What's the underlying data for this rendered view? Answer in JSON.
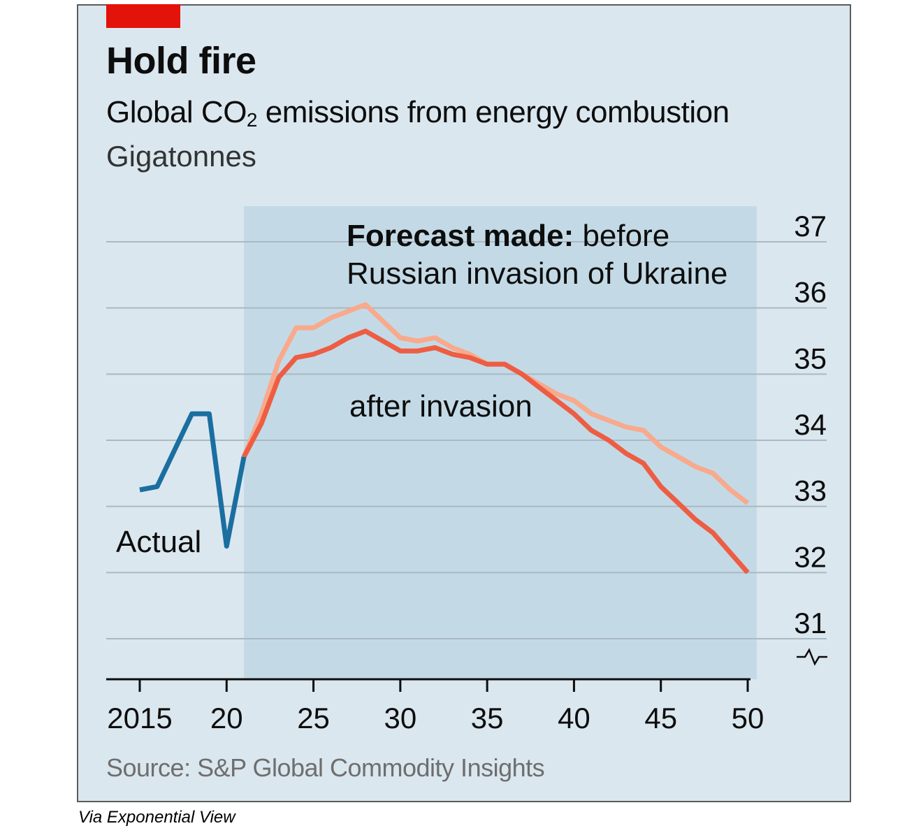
{
  "header": {
    "title": "Hold fire",
    "subtitle_main": "Global CO",
    "subtitle_sub": "2",
    "subtitle_rest": " emissions from energy combustion",
    "unit": "Gigatonnes"
  },
  "annotations": {
    "forecast_bold": "Forecast made:",
    "forecast_rest": " before",
    "forecast_line2": "Russian invasion of Ukraine",
    "after": "after invasion",
    "actual": "Actual"
  },
  "footer": {
    "source": "Source: S&P Global Commodity Insights",
    "credit": "Via Exponential View"
  },
  "colors": {
    "background": "#dbe7ef",
    "forecast_shade": "#c3dae6",
    "actual": "#1a6fa0",
    "before": "#f9a98c",
    "after": "#ee5d43",
    "accent_tab": "#e3120b"
  },
  "chart_data": {
    "type": "line",
    "title": "Hold fire",
    "subtitle": "Global CO2 emissions from energy combustion",
    "ylabel": "Gigatonnes",
    "xlim": [
      2015,
      2050
    ],
    "ylim": [
      31,
      37
    ],
    "y_axis_broken": true,
    "y_axis_side": "right",
    "grid": true,
    "forecast_region": [
      2021,
      2050
    ],
    "x_ticks": [
      2015,
      2020,
      2025,
      2030,
      2035,
      2040,
      2045,
      2050
    ],
    "x_tick_labels": [
      "2015",
      "20",
      "25",
      "30",
      "35",
      "40",
      "45",
      "50"
    ],
    "y_ticks": [
      31,
      32,
      33,
      34,
      35,
      36,
      37
    ],
    "y_tick_labels": [
      "31",
      "32",
      "33",
      "34",
      "35",
      "36",
      "37"
    ],
    "series": [
      {
        "name": "Actual",
        "x": [
          2015,
          2016,
          2017,
          2018,
          2019,
          2020,
          2021
        ],
        "y": [
          33.25,
          33.3,
          33.85,
          34.4,
          34.4,
          32.4,
          33.75
        ]
      },
      {
        "name": "Forecast made: before Russian invasion of Ukraine",
        "x": [
          2021,
          2022,
          2023,
          2024,
          2025,
          2026,
          2027,
          2028,
          2029,
          2030,
          2031,
          2032,
          2033,
          2034,
          2035,
          2036,
          2037,
          2038,
          2039,
          2040,
          2041,
          2042,
          2043,
          2044,
          2045,
          2046,
          2047,
          2048,
          2049,
          2050
        ],
        "y": [
          33.75,
          34.4,
          35.2,
          35.7,
          35.7,
          35.85,
          35.95,
          36.05,
          35.8,
          35.55,
          35.5,
          35.55,
          35.4,
          35.3,
          35.15,
          35.15,
          35.0,
          34.85,
          34.7,
          34.6,
          34.4,
          34.3,
          34.2,
          34.15,
          33.9,
          33.75,
          33.6,
          33.5,
          33.25,
          33.05
        ]
      },
      {
        "name": "after invasion",
        "x": [
          2021,
          2022,
          2023,
          2024,
          2025,
          2026,
          2027,
          2028,
          2029,
          2030,
          2031,
          2032,
          2033,
          2034,
          2035,
          2036,
          2037,
          2038,
          2039,
          2040,
          2041,
          2042,
          2043,
          2044,
          2045,
          2046,
          2047,
          2048,
          2049,
          2050
        ],
        "y": [
          33.75,
          34.25,
          34.95,
          35.25,
          35.3,
          35.4,
          35.55,
          35.65,
          35.5,
          35.35,
          35.35,
          35.4,
          35.3,
          35.25,
          35.15,
          35.15,
          35.0,
          34.8,
          34.6,
          34.4,
          34.15,
          34.0,
          33.8,
          33.65,
          33.3,
          33.05,
          32.8,
          32.6,
          32.3,
          32.0
        ]
      }
    ]
  }
}
